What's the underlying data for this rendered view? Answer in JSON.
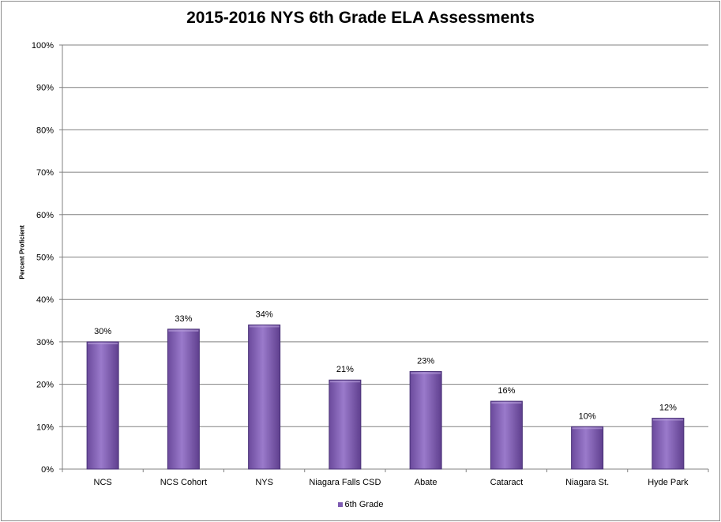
{
  "chart_data": {
    "type": "bar",
    "title": "2015-2016 NYS 6th Grade ELA Assessments",
    "ylabel": "Percent Proficient",
    "xlabel": "",
    "categories": [
      "NCS",
      "NCS Cohort",
      "NYS",
      "Niagara Falls CSD",
      "Abate",
      "Cataract",
      "Niagara St.",
      "Hyde Park"
    ],
    "series": [
      {
        "name": "6th Grade",
        "values": [
          30,
          33,
          34,
          21,
          23,
          16,
          10,
          12
        ],
        "color": "#7e5bb2"
      }
    ],
    "data_labels": [
      "30%",
      "33%",
      "34%",
      "21%",
      "23%",
      "16%",
      "10%",
      "12%"
    ],
    "yticks": [
      "0%",
      "10%",
      "20%",
      "30%",
      "40%",
      "50%",
      "60%",
      "70%",
      "80%",
      "90%",
      "100%"
    ],
    "ylim": [
      0,
      100
    ],
    "grid": true,
    "legend_position": "bottom"
  }
}
